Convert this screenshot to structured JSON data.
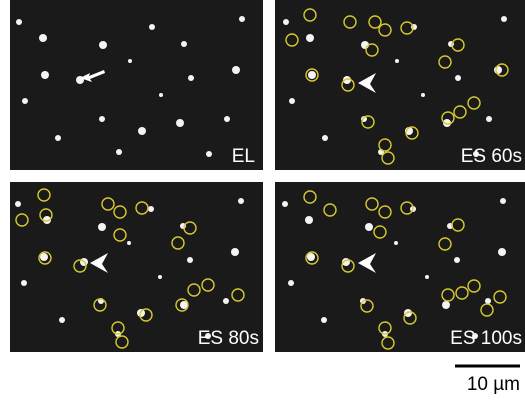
{
  "panels": [
    {
      "label": "EL"
    },
    {
      "label": "ES 60s"
    },
    {
      "label": "ES 80s"
    },
    {
      "label": "ES 100s"
    }
  ],
  "scale_bar": {
    "label": "10 µm"
  }
}
